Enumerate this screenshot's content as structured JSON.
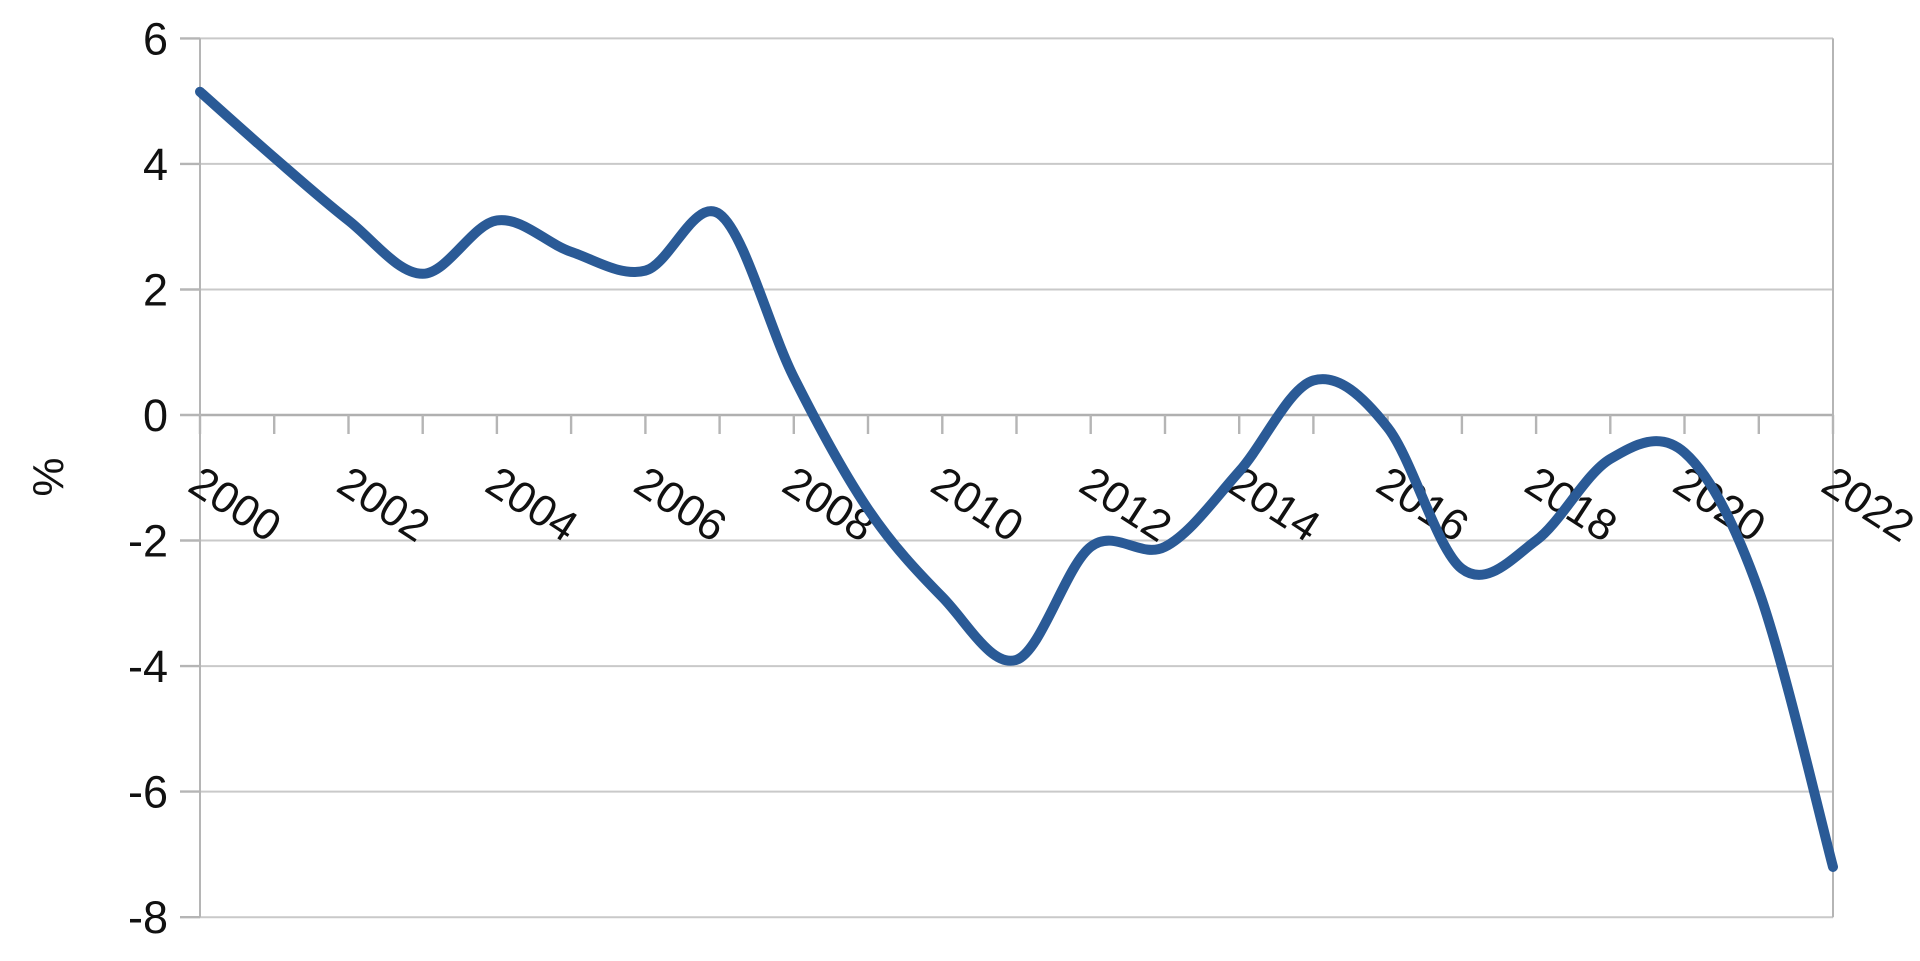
{
  "chart_data": {
    "type": "line",
    "title": "",
    "ylabel": "%",
    "xlabel": "",
    "legend": false,
    "grid": true,
    "smooth": true,
    "x": [
      2000,
      2001,
      2002,
      2003,
      2004,
      2005,
      2006,
      2007,
      2008,
      2009,
      2010,
      2011,
      2012,
      2013,
      2014,
      2015,
      2016,
      2017,
      2018,
      2019,
      2020,
      2021,
      2022
    ],
    "values": [
      5.15,
      4.1,
      3.1,
      2.25,
      3.1,
      2.6,
      2.3,
      3.2,
      0.6,
      -1.5,
      -2.9,
      -3.9,
      -2.1,
      -2.1,
      -0.9,
      0.55,
      -0.2,
      -2.45,
      -2.0,
      -0.7,
      -0.6,
      -2.8,
      -7.2
    ],
    "ylim": [
      -8,
      6
    ],
    "yticks": [
      6,
      4,
      2,
      0,
      -2,
      -4,
      -6,
      -8
    ],
    "ytick_labels": [
      "6",
      "4",
      "2",
      "0",
      "-2",
      "-4",
      "-6",
      "-8"
    ],
    "xtick_labels": [
      "2000",
      "2002",
      "2004",
      "2006",
      "2008",
      "2010",
      "2012",
      "2014",
      "2016",
      "2018",
      "2020",
      "2022"
    ],
    "colors": {
      "line": "#2a5a96",
      "gridline": "#c9c9c9",
      "zero_axis": "#b0b0b0",
      "axis_border": "#b5b5b5",
      "tick": "#b5b5b5",
      "label": "#111111",
      "background": "#ffffff"
    }
  }
}
